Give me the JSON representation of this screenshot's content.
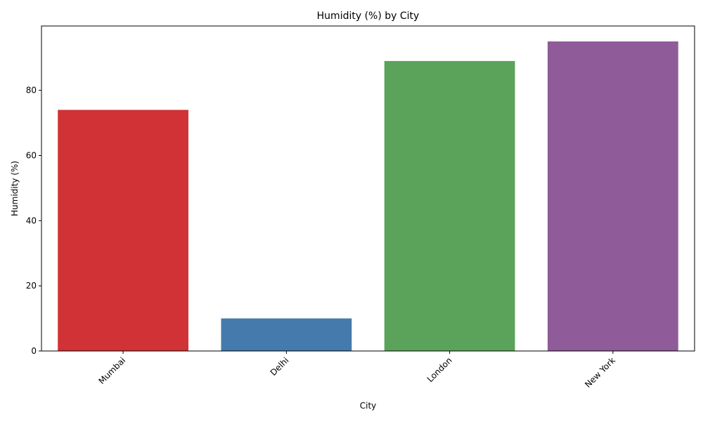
{
  "chart_data": {
    "type": "bar",
    "title": "Humidity (%) by City",
    "xlabel": "City",
    "ylabel": "Humidity (%)",
    "categories": [
      "Mumbai",
      "Delhi",
      "London",
      "New York"
    ],
    "values": [
      74,
      10,
      89,
      95
    ],
    "colors": [
      "#d03236",
      "#457bac",
      "#5ba35b",
      "#8f5b98"
    ],
    "yticks": [
      0,
      20,
      40,
      60,
      80
    ],
    "ylim": [
      0,
      99.75
    ],
    "grid": false,
    "legend": "none",
    "xtick_rotation_deg": 45
  }
}
